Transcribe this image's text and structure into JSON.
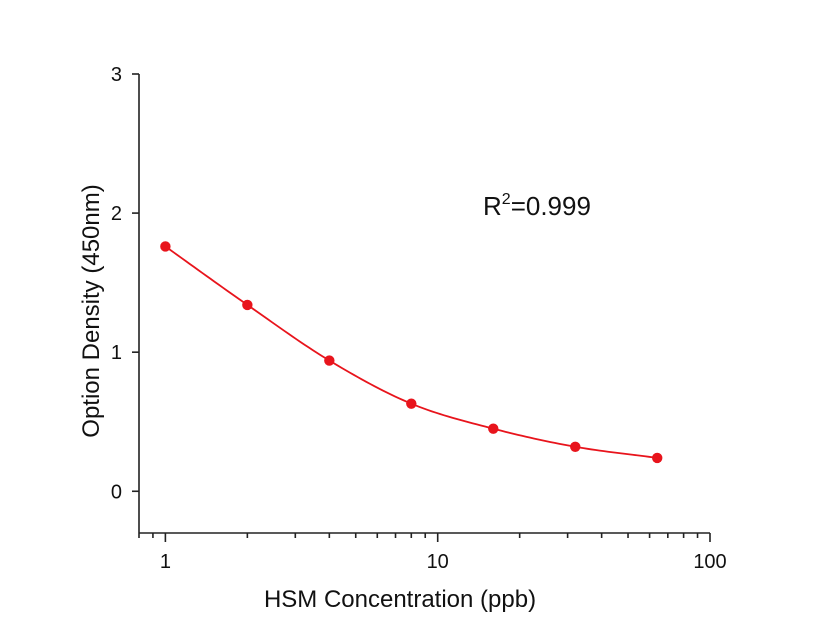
{
  "chart_data": {
    "type": "scatter",
    "xscale": "log",
    "xlabel": "HSM  Concentration  (ppb)",
    "ylabel": "Option Density  (450nm)",
    "xlim": [
      0.8,
      100
    ],
    "ylim": [
      -0.3,
      3
    ],
    "x_ticks": [
      1,
      10,
      100
    ],
    "x_tick_labels": [
      "1",
      "10",
      "100"
    ],
    "y_ticks": [
      0,
      1,
      2,
      3
    ],
    "y_tick_labels": [
      "0",
      "1",
      "2",
      "3"
    ],
    "grid": false,
    "series": [
      {
        "color": "#e8141c",
        "x": [
          1,
          2,
          4,
          8,
          16,
          32,
          64
        ],
        "y": [
          1.76,
          1.34,
          0.94,
          0.63,
          0.45,
          0.32,
          0.24
        ],
        "fit_curve": true
      }
    ],
    "annotation": {
      "base": "R",
      "sup": "2",
      "text": "=0.999"
    }
  }
}
